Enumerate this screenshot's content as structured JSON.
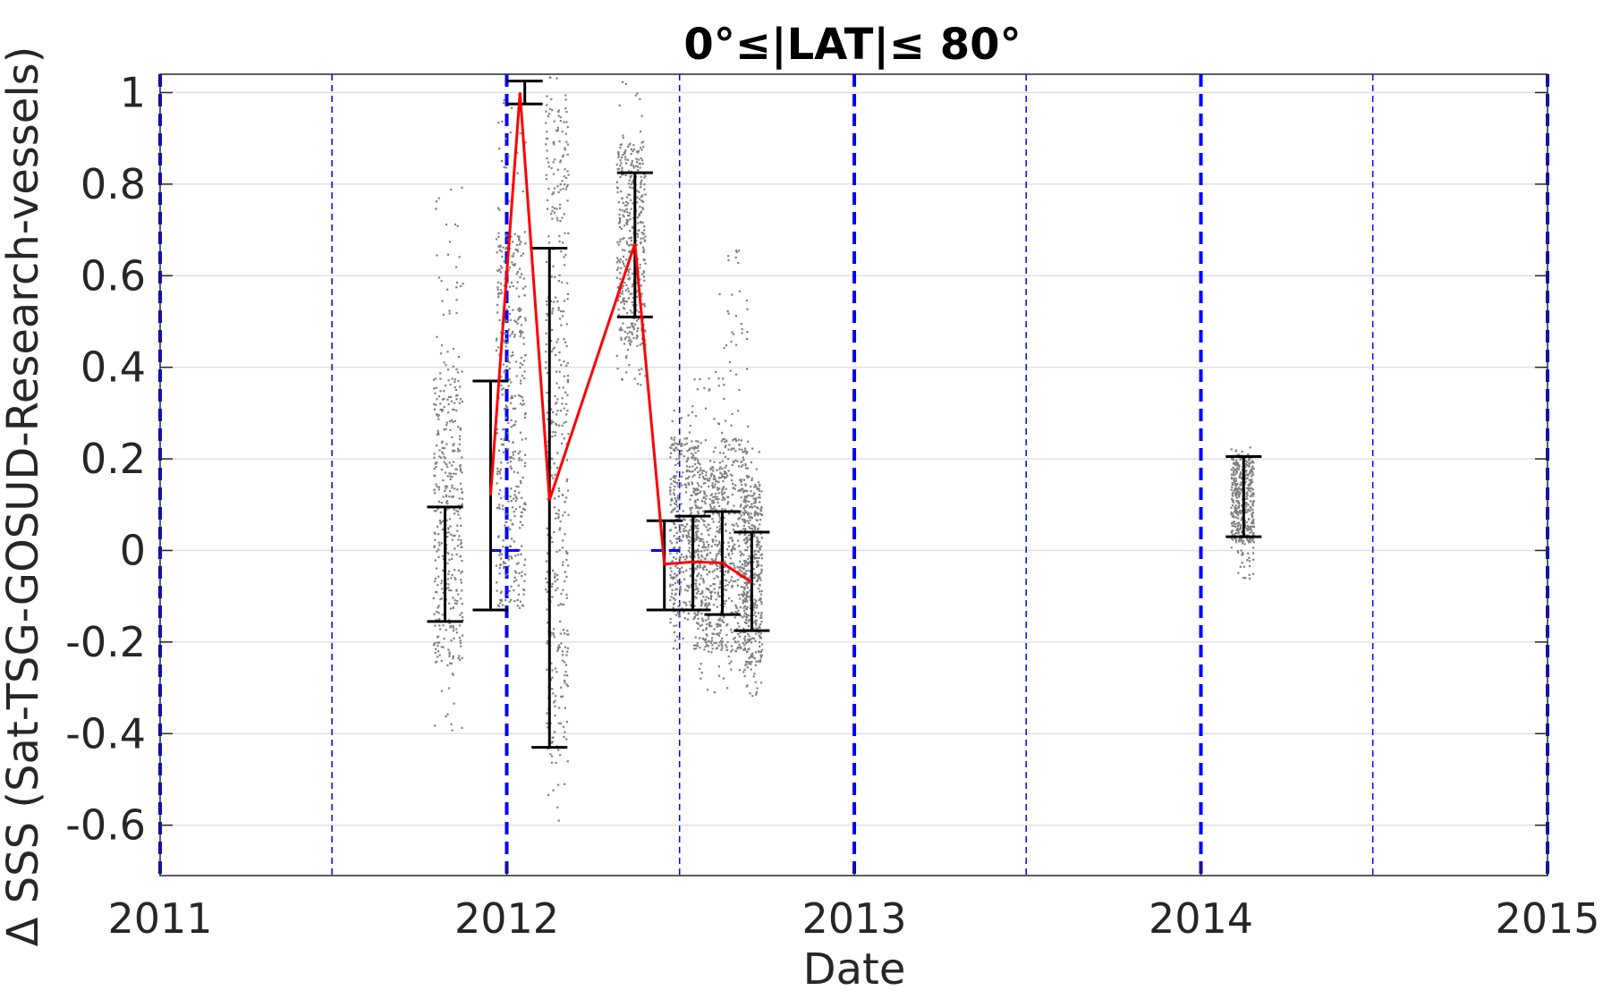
{
  "chart_data": {
    "type": "scatter",
    "title": "0°≤|LAT|≤ 80°",
    "xlabel": "Date",
    "ylabel": "Δ SSS (Sat-TSG-GOSUD-Research-vessels)",
    "xlim": [
      "2011-01-01",
      "2015-01-01"
    ],
    "ylim": [
      -0.71,
      1.04
    ],
    "grid": true,
    "xticks": [
      "2011",
      "2012",
      "2013",
      "2014",
      "2015"
    ],
    "yticks": [
      1,
      0.8,
      0.6,
      0.4,
      0.2,
      0,
      -0.2,
      -0.4,
      -0.6
    ],
    "ytick_labels": [
      "1",
      "0.8",
      "0.6",
      "0.4",
      "0.2",
      "0",
      "-0.2",
      "-0.4",
      "-0.6"
    ],
    "year_lines": [
      "2011-01-01",
      "2012-01-01",
      "2013-01-01",
      "2014-01-01",
      "2015-01-01"
    ],
    "halfyear_lines": [
      "2011-07-01",
      "2012-07-01",
      "2013-07-01",
      "2014-07-01"
    ],
    "zero_segments": [
      {
        "from": "2011-12-15",
        "to": "2012-01-15",
        "y": 0
      },
      {
        "from": "2012-06-01",
        "to": "2012-07-01",
        "y": 0
      }
    ],
    "series": [
      {
        "style": "scatter",
        "color": "#808080",
        "clusters": [
          {
            "from": "2011-10-15",
            "to": "2011-11-15",
            "ymin": -0.4,
            "ymax": 0.84,
            "dense_min": -0.25,
            "dense_max": 0.4
          },
          {
            "from": "2011-12-20",
            "to": "2012-01-20",
            "ymin": -0.14,
            "ymax": 1.0,
            "dense_min": -0.12,
            "dense_max": 0.7
          },
          {
            "from": "2012-02-10",
            "to": "2012-03-05",
            "ymin": -0.61,
            "ymax": 1.04,
            "dense_min": -0.45,
            "dense_max": 1.0
          },
          {
            "from": "2012-04-25",
            "to": "2012-05-25",
            "ymin": 0.36,
            "ymax": 1.03,
            "dense_min": 0.45,
            "dense_max": 0.9
          },
          {
            "from": "2012-06-20",
            "to": "2012-07-20",
            "ymin": -0.22,
            "ymax": 0.33,
            "dense_min": -0.15,
            "dense_max": 0.25
          },
          {
            "from": "2012-07-15",
            "to": "2012-08-15",
            "ymin": -0.32,
            "ymax": 0.4,
            "dense_min": -0.22,
            "dense_max": 0.2
          },
          {
            "from": "2012-08-10",
            "to": "2012-09-10",
            "ymin": -0.3,
            "ymax": 0.66,
            "dense_min": -0.22,
            "dense_max": 0.25
          },
          {
            "from": "2012-09-05",
            "to": "2012-09-25",
            "ymin": -0.32,
            "ymax": 0.23,
            "dense_min": -0.25,
            "dense_max": 0.15
          },
          {
            "from": "2014-02-01",
            "to": "2014-02-25",
            "ymin": -0.06,
            "ymax": 0.23,
            "dense_min": 0.02,
            "dense_max": 0.21
          }
        ]
      },
      {
        "style": "line",
        "color": "#ff0000",
        "x": [
          "2011-12-15",
          "2012-01-15",
          "2012-02-15",
          "2012-05-15",
          "2012-06-15",
          "2012-07-15",
          "2012-08-15",
          "2012-09-15"
        ],
        "y": [
          0.12,
          1.0,
          0.11,
          0.67,
          -0.03,
          -0.025,
          -0.027,
          -0.07
        ]
      }
    ],
    "errorbars": [
      {
        "x": "2011-10-28",
        "low": -0.155,
        "high": 0.095
      },
      {
        "x": "2011-12-15",
        "low": -0.13,
        "high": 0.37
      },
      {
        "x": "2012-01-20",
        "low": 0.975,
        "high": 1.025
      },
      {
        "x": "2012-02-15",
        "low": -0.43,
        "high": 0.66
      },
      {
        "x": "2012-05-15",
        "low": 0.51,
        "high": 0.825
      },
      {
        "x": "2012-06-15",
        "low": -0.13,
        "high": 0.065
      },
      {
        "x": "2012-07-15",
        "low": -0.13,
        "high": 0.075
      },
      {
        "x": "2012-08-15",
        "low": -0.14,
        "high": 0.085
      },
      {
        "x": "2012-09-15",
        "low": -0.175,
        "high": 0.04
      },
      {
        "x": "2014-02-15",
        "low": 0.03,
        "high": 0.205
      }
    ],
    "colors": {
      "errorbar": "#000000",
      "reference_lines": "#0000ff",
      "grid": "#e0e0e0",
      "axes": "#262626"
    }
  }
}
